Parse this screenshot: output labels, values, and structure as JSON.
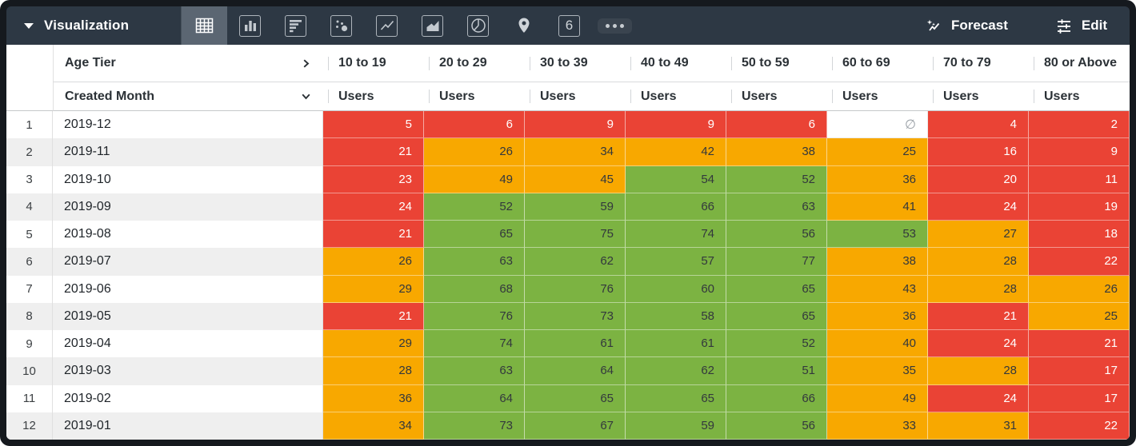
{
  "topbar": {
    "viz_label": "Visualization",
    "forecast_label": "Forecast",
    "edit_label": "Edit",
    "single_value_label": "6",
    "selected_viz": "table",
    "viz_type_icons": [
      "table-icon",
      "bar-chart-icon",
      "horizontal-bar-chart-icon",
      "scatter-plot-icon",
      "line-chart-icon",
      "area-chart-icon",
      "pie-chart-icon",
      "map-pin-icon",
      "single-value-icon",
      "more-ellipsis-icon"
    ],
    "right_icons": [
      "sparkle-trend-icon",
      "tune-sliders-icon"
    ]
  },
  "colors": {
    "topbar_bg": "#2d3844",
    "selected_viz_bg": "#5b6672",
    "heat_red": "#EA4335",
    "heat_orange": "#F8A800",
    "heat_green": "#7CB342",
    "row_stripe": "#efefef"
  },
  "table": {
    "pivot_dimension": "Age Tier",
    "row_dimension": "Created Month",
    "measure": "Users",
    "age_tiers": [
      "10 to 19",
      "20 to 29",
      "30 to 39",
      "40 to 49",
      "50 to 59",
      "60 to 69",
      "70 to 79",
      "80 or Above"
    ],
    "null_symbol": "∅",
    "rows": [
      {
        "n": "1",
        "month": "2019-12",
        "cells": [
          {
            "v": "5",
            "c": "r"
          },
          {
            "v": "6",
            "c": "r"
          },
          {
            "v": "9",
            "c": "r"
          },
          {
            "v": "9",
            "c": "r"
          },
          {
            "v": "6",
            "c": "r"
          },
          {
            "v": "∅",
            "c": "n"
          },
          {
            "v": "4",
            "c": "r"
          },
          {
            "v": "2",
            "c": "r"
          }
        ]
      },
      {
        "n": "2",
        "month": "2019-11",
        "cells": [
          {
            "v": "21",
            "c": "r"
          },
          {
            "v": "26",
            "c": "o"
          },
          {
            "v": "34",
            "c": "o"
          },
          {
            "v": "42",
            "c": "o"
          },
          {
            "v": "38",
            "c": "o"
          },
          {
            "v": "25",
            "c": "o"
          },
          {
            "v": "16",
            "c": "r"
          },
          {
            "v": "9",
            "c": "r"
          }
        ]
      },
      {
        "n": "3",
        "month": "2019-10",
        "cells": [
          {
            "v": "23",
            "c": "r"
          },
          {
            "v": "49",
            "c": "o"
          },
          {
            "v": "45",
            "c": "o"
          },
          {
            "v": "54",
            "c": "g"
          },
          {
            "v": "52",
            "c": "g"
          },
          {
            "v": "36",
            "c": "o"
          },
          {
            "v": "20",
            "c": "r"
          },
          {
            "v": "11",
            "c": "r"
          }
        ]
      },
      {
        "n": "4",
        "month": "2019-09",
        "cells": [
          {
            "v": "24",
            "c": "r"
          },
          {
            "v": "52",
            "c": "g"
          },
          {
            "v": "59",
            "c": "g"
          },
          {
            "v": "66",
            "c": "g"
          },
          {
            "v": "63",
            "c": "g"
          },
          {
            "v": "41",
            "c": "o"
          },
          {
            "v": "24",
            "c": "r"
          },
          {
            "v": "19",
            "c": "r"
          }
        ]
      },
      {
        "n": "5",
        "month": "2019-08",
        "cells": [
          {
            "v": "21",
            "c": "r"
          },
          {
            "v": "65",
            "c": "g"
          },
          {
            "v": "75",
            "c": "g"
          },
          {
            "v": "74",
            "c": "g"
          },
          {
            "v": "56",
            "c": "g"
          },
          {
            "v": "53",
            "c": "g"
          },
          {
            "v": "27",
            "c": "o"
          },
          {
            "v": "18",
            "c": "r"
          }
        ]
      },
      {
        "n": "6",
        "month": "2019-07",
        "cells": [
          {
            "v": "26",
            "c": "o"
          },
          {
            "v": "63",
            "c": "g"
          },
          {
            "v": "62",
            "c": "g"
          },
          {
            "v": "57",
            "c": "g"
          },
          {
            "v": "77",
            "c": "g"
          },
          {
            "v": "38",
            "c": "o"
          },
          {
            "v": "28",
            "c": "o"
          },
          {
            "v": "22",
            "c": "r"
          }
        ]
      },
      {
        "n": "7",
        "month": "2019-06",
        "cells": [
          {
            "v": "29",
            "c": "o"
          },
          {
            "v": "68",
            "c": "g"
          },
          {
            "v": "76",
            "c": "g"
          },
          {
            "v": "60",
            "c": "g"
          },
          {
            "v": "65",
            "c": "g"
          },
          {
            "v": "43",
            "c": "o"
          },
          {
            "v": "28",
            "c": "o"
          },
          {
            "v": "26",
            "c": "o"
          }
        ]
      },
      {
        "n": "8",
        "month": "2019-05",
        "cells": [
          {
            "v": "21",
            "c": "r"
          },
          {
            "v": "76",
            "c": "g"
          },
          {
            "v": "73",
            "c": "g"
          },
          {
            "v": "58",
            "c": "g"
          },
          {
            "v": "65",
            "c": "g"
          },
          {
            "v": "36",
            "c": "o"
          },
          {
            "v": "21",
            "c": "r"
          },
          {
            "v": "25",
            "c": "o"
          }
        ]
      },
      {
        "n": "9",
        "month": "2019-04",
        "cells": [
          {
            "v": "29",
            "c": "o"
          },
          {
            "v": "74",
            "c": "g"
          },
          {
            "v": "61",
            "c": "g"
          },
          {
            "v": "61",
            "c": "g"
          },
          {
            "v": "52",
            "c": "g"
          },
          {
            "v": "40",
            "c": "o"
          },
          {
            "v": "24",
            "c": "r"
          },
          {
            "v": "21",
            "c": "r"
          }
        ]
      },
      {
        "n": "10",
        "month": "2019-03",
        "cells": [
          {
            "v": "28",
            "c": "o"
          },
          {
            "v": "63",
            "c": "g"
          },
          {
            "v": "64",
            "c": "g"
          },
          {
            "v": "62",
            "c": "g"
          },
          {
            "v": "51",
            "c": "g"
          },
          {
            "v": "35",
            "c": "o"
          },
          {
            "v": "28",
            "c": "o"
          },
          {
            "v": "17",
            "c": "r"
          }
        ]
      },
      {
        "n": "11",
        "month": "2019-02",
        "cells": [
          {
            "v": "36",
            "c": "o"
          },
          {
            "v": "64",
            "c": "g"
          },
          {
            "v": "65",
            "c": "g"
          },
          {
            "v": "65",
            "c": "g"
          },
          {
            "v": "66",
            "c": "g"
          },
          {
            "v": "49",
            "c": "o"
          },
          {
            "v": "24",
            "c": "r"
          },
          {
            "v": "17",
            "c": "r"
          }
        ]
      },
      {
        "n": "12",
        "month": "2019-01",
        "cells": [
          {
            "v": "34",
            "c": "o"
          },
          {
            "v": "73",
            "c": "g"
          },
          {
            "v": "67",
            "c": "g"
          },
          {
            "v": "59",
            "c": "g"
          },
          {
            "v": "56",
            "c": "g"
          },
          {
            "v": "33",
            "c": "o"
          },
          {
            "v": "31",
            "c": "o"
          },
          {
            "v": "22",
            "c": "r"
          }
        ]
      }
    ]
  }
}
